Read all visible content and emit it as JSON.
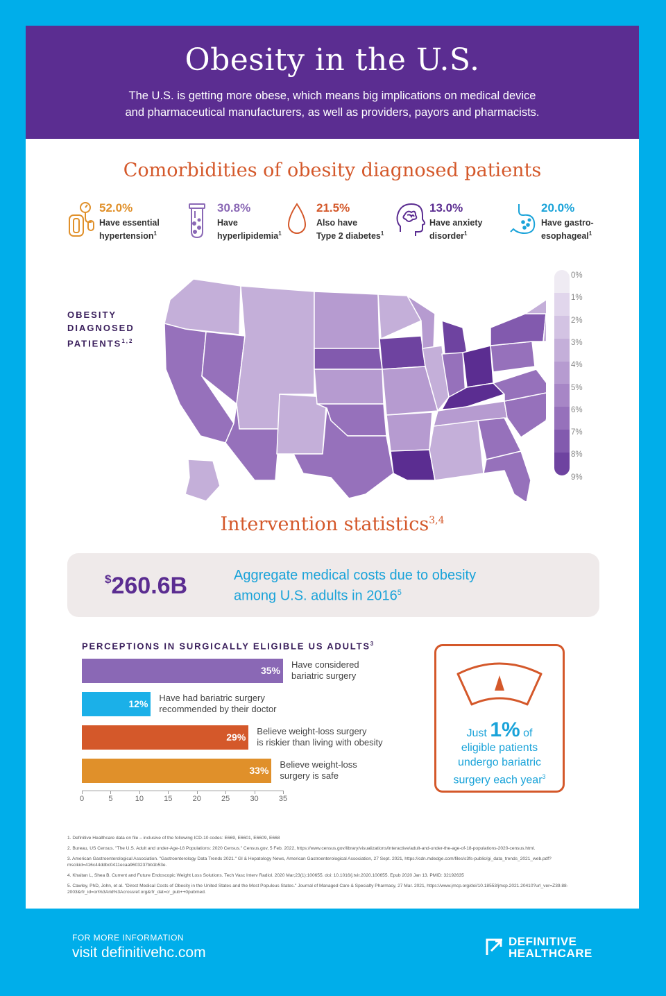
{
  "header": {
    "title": "Obesity in the U.S.",
    "subtitle_line1": "The U.S. is getting more obese, which means big implications on medical device",
    "subtitle_line2": "and pharmaceutical manufacturers, as well as providers, payors and pharmacists."
  },
  "comorbidities": {
    "title": "Comorbidities of obesity diagnosed patients",
    "items": [
      {
        "pct": "52.0%",
        "line1": "Have essential",
        "line2": "hypertension",
        "sup": "1",
        "color": "#e0902a",
        "icon": "blood-pressure-icon"
      },
      {
        "pct": "30.8%",
        "line1": "Have",
        "line2": "hyperlipidemia",
        "sup": "1",
        "color": "#8a68b5",
        "icon": "test-tube-icon"
      },
      {
        "pct": "21.5%",
        "line1": "Also have",
        "line2": "Type 2 diabetes",
        "sup": "1",
        "color": "#d4582a",
        "icon": "blood-drop-icon"
      },
      {
        "pct": "13.0%",
        "line1": "Have anxiety",
        "line2": "disorder",
        "sup": "1",
        "color": "#5b2d91",
        "icon": "anxious-head-icon"
      },
      {
        "pct": "20.0%",
        "line1": "Have gastro-",
        "line2": "esophageal",
        "sup": "1",
        "color": "#1aa3d9",
        "icon": "stomach-icon"
      }
    ]
  },
  "map": {
    "label_line1": "OBESITY",
    "label_line2": "DIAGNOSED",
    "label_line3": "PATIENTS",
    "label_sup": "1,2",
    "legend_ticks": [
      "0%",
      "1%",
      "2%",
      "3%",
      "4%",
      "5%",
      "6%",
      "7%",
      "8%",
      "9%"
    ],
    "legend_colors": [
      "#efebf3",
      "#e1d6ec",
      "#d3c3e3",
      "#c4afd9",
      "#b69bd0",
      "#a786c6",
      "#9671bb",
      "#825aae",
      "#6e43a0",
      "#5b2d91"
    ]
  },
  "intervention": {
    "title": "Intervention statistics",
    "title_sup": "3,4",
    "cost_currency": "$",
    "cost_amount": "260.6B",
    "cost_line1": "Aggregate medical costs due to obesity",
    "cost_line2": "among U.S. adults in 2016",
    "cost_sup": "5"
  },
  "chart_data": {
    "type": "bar",
    "title": "PERCEPTIONS IN SURGICALLY ELIGIBLE US ADULTS",
    "title_sup": "3",
    "orientation": "horizontal",
    "xlim": [
      0,
      35
    ],
    "x_ticks": [
      "0",
      "5",
      "10",
      "15",
      "20",
      "25",
      "30",
      "35"
    ],
    "bars": [
      {
        "value": 35,
        "value_label": "35%",
        "line1": "Have considered",
        "line2": "bariatric surgery",
        "color": "#8a68b5"
      },
      {
        "value": 12,
        "value_label": "12%",
        "line1": "Have had bariatric surgery",
        "line2": "recommended by their doctor",
        "color": "#1bb0e8"
      },
      {
        "value": 29,
        "value_label": "29%",
        "line1": "Believe weight-loss surgery",
        "line2": "is riskier than living with obesity",
        "color": "#d4582a"
      },
      {
        "value": 33,
        "value_label": "33%",
        "line1": "Believe weight-loss",
        "line2": "surgery is safe",
        "color": "#e0902a"
      }
    ]
  },
  "gauge": {
    "just": "Just",
    "big": "1%",
    "of": "of",
    "line2": "eligible patients",
    "line3": "undergo bariatric",
    "line4": "surgery each year",
    "sup": "3"
  },
  "notes": [
    "1. Definitive Healthcare data on file – inclusive of the following ICD-10 codes: E669, E6601, E6609, E668",
    "2. Bureau, US Census. \"The U.S. Adult and under-Age-18 Populations: 2020 Census.\" Census.gov, 5 Feb. 2022, https://www.census.gov/library/visualizations/interactive/adult-and-under-the-age-of-18-populations-2020-census.html.",
    "3. American Gastroenterological Association. \"Gastroenterology Data Trends 2021.\" GI & Hepatology News, American Gastroenterological Association, 27 Sept. 2021, https://cdn.mdedge.com/files/s3fs-public/gi_data_trends_2021_web.pdf?mscikid=416c44ddbc0411ecaa9603237bb1b53e.",
    "4. Khaitan L, Shea B. Current and Future Endoscopic Weight Loss Solutions. Tech Vasc Interv Radiol. 2020 Mar;23(1):100655. doi: 10.1016/j.tvir.2020.100655. Epub 2020 Jan 13. PMID: 32192635",
    "5. Cawley, PhD, John, et al. \"Direct Medical Costs of Obesity in the United States and the Most Populous States.\" Journal of Managed Care & Specialty Pharmacy, 27 Mar. 2021, https://www.jmcp.org/doi/10.18553/jmcp.2021.20410?url_ver=Z39.88-2003&rfr_id=ori%3Arid%3Acrossref.org&rfr_dat=cr_pub++0pubmed."
  ],
  "footer": {
    "small": "FOR MORE INFORMATION",
    "big": "visit definitivehc.com",
    "logo_line1": "DEFINITIVE",
    "logo_line2": "HEALTHCARE"
  }
}
